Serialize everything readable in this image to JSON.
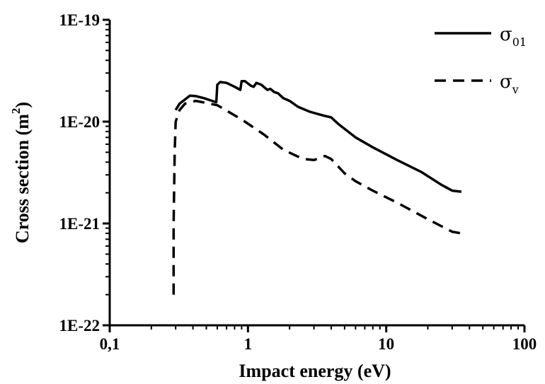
{
  "chart_data": {
    "type": "line",
    "xlabel": "Impact energy (eV)",
    "ylabel_main": "Cross section (m",
    "ylabel_sup": "2",
    "ylabel_close": ")",
    "x_scale": "log",
    "y_scale": "log",
    "xlim": [
      0.1,
      100
    ],
    "ylim": [
      1e-22,
      1e-19
    ],
    "x_ticks": [
      0.1,
      1,
      10,
      100
    ],
    "x_tick_labels": [
      "0,1",
      "1",
      "10",
      "100"
    ],
    "y_ticks": [
      1e-22,
      1e-21,
      1e-20,
      1e-19
    ],
    "y_tick_labels": [
      "1E-22",
      "1E-21",
      "1E-20",
      "1E-19"
    ],
    "grid": false,
    "legend_position": "top-right",
    "series": [
      {
        "name_base": "σ",
        "name_sub": "01",
        "style": "solid",
        "x": [
          0.3,
          0.32,
          0.35,
          0.38,
          0.42,
          0.48,
          0.55,
          0.59,
          0.6,
          0.63,
          0.7,
          0.8,
          0.88,
          0.9,
          0.95,
          1.05,
          1.1,
          1.15,
          1.25,
          1.38,
          1.45,
          1.55,
          1.65,
          1.8,
          2.0,
          2.3,
          2.8,
          3.5,
          4.0,
          4.5,
          5.0,
          6.0,
          8.0,
          12.0,
          18.0,
          25.0,
          30.0,
          35.0
        ],
        "y": [
          1.3e-20,
          1.5e-20,
          1.65e-20,
          1.8e-20,
          1.78e-20,
          1.7e-20,
          1.6e-20,
          1.55e-20,
          2.3e-20,
          2.45e-20,
          2.4e-20,
          2.2e-20,
          2.05e-20,
          2.5e-20,
          2.5e-20,
          2.25e-20,
          2.2e-20,
          2.4e-20,
          2.3e-20,
          2.05e-20,
          2.1e-20,
          1.95e-20,
          1.9e-20,
          1.7e-20,
          1.6e-20,
          1.4e-20,
          1.25e-20,
          1.15e-20,
          1.1e-20,
          9.5e-21,
          8.5e-21,
          7e-21,
          5.6e-21,
          4.2e-21,
          3.2e-21,
          2.4e-21,
          2.1e-21,
          2.05e-21
        ]
      },
      {
        "name_base": "σ",
        "name_sub": "v",
        "style": "dashed",
        "x": [
          0.29,
          0.29,
          0.295,
          0.3,
          0.32,
          0.35,
          0.42,
          0.6,
          0.9,
          1.3,
          1.8,
          2.5,
          3.0,
          3.6,
          4.0,
          5.0,
          6.0,
          8.0,
          12.0,
          20.0,
          30.0,
          35.0
        ],
        "y": [
          2e-22,
          1e-21,
          5e-21,
          1e-20,
          1.3e-20,
          1.5e-20,
          1.6e-20,
          1.45e-20,
          1.05e-20,
          7.5e-21,
          5.3e-21,
          4.3e-21,
          4.2e-21,
          4.6e-21,
          4.3e-21,
          3.1e-21,
          2.6e-21,
          2.1e-21,
          1.6e-21,
          1.1e-21,
          8.3e-22,
          8e-22
        ]
      }
    ]
  }
}
